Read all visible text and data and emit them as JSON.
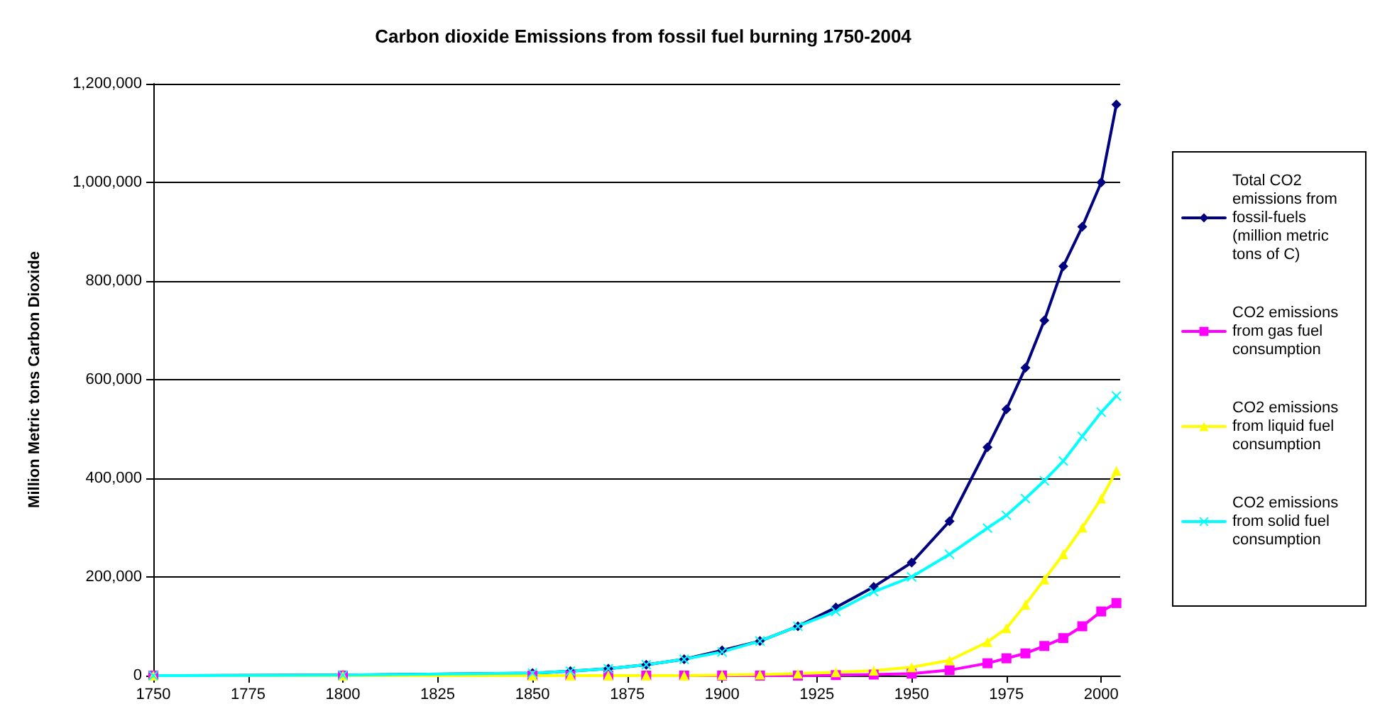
{
  "chart_data": {
    "type": "line",
    "title": "Carbon dioxide Emissions from fossil fuel burning 1750-2004",
    "ylabel": "Million Metric tons Carbon Dioxide",
    "x": [
      1750,
      1800,
      1850,
      1860,
      1870,
      1880,
      1890,
      1900,
      1910,
      1920,
      1930,
      1940,
      1950,
      1960,
      1970,
      1975,
      1980,
      1985,
      1990,
      1995,
      2000,
      2004
    ],
    "series": [
      {
        "name": "Total CO2 emissions from fossil-fuels (million metric tons of C)",
        "color": "#000080",
        "marker": "diamond",
        "values": [
          0,
          1000,
          5000,
          9000,
          14000,
          22000,
          33000,
          51000,
          70000,
          100000,
          138000,
          180000,
          229000,
          313000,
          463000,
          540000,
          624000,
          720000,
          830000,
          910000,
          1000000,
          1158000
        ]
      },
      {
        "name": "CO2 emissions from gas fuel consumption",
        "color": "#ff00ff",
        "marker": "square",
        "values": [
          0,
          0,
          0,
          0,
          0,
          0,
          0,
          0,
          0,
          0,
          1000,
          2000,
          4000,
          11000,
          25000,
          35000,
          45000,
          60000,
          76000,
          100000,
          130000,
          147000
        ]
      },
      {
        "name": "CO2 emissions from liquid fuel consumption",
        "color": "#ffff00",
        "marker": "triangle",
        "values": [
          0,
          0,
          0,
          0,
          0,
          0,
          0,
          1000,
          2000,
          4000,
          7000,
          10000,
          17000,
          31000,
          68000,
          96000,
          144000,
          195000,
          246000,
          300000,
          359000,
          415000
        ]
      },
      {
        "name": "CO2 emissions from solid fuel consumption",
        "color": "#00ffff",
        "marker": "cross",
        "values": [
          0,
          1000,
          5000,
          9000,
          14000,
          22000,
          33000,
          48000,
          70000,
          100000,
          130000,
          170000,
          200000,
          246000,
          299000,
          325000,
          359000,
          395000,
          435000,
          485000,
          534000,
          567000
        ]
      }
    ],
    "xlim": [
      1750,
      2005
    ],
    "xticks": [
      1750,
      1775,
      1800,
      1825,
      1850,
      1875,
      1900,
      1925,
      1950,
      1975,
      2000
    ],
    "ylim": [
      0,
      1200000
    ],
    "yticks": [
      0,
      {
        "value": 200000,
        "label": "200,000"
      },
      {
        "value": 400000,
        "label": "400,000"
      },
      {
        "value": 600000,
        "label": "600,000"
      },
      {
        "value": 800000,
        "label": "800,000"
      },
      {
        "value": 1000000,
        "label": "1,000,000"
      },
      {
        "value": 1200000,
        "label": "1,200,000"
      }
    ],
    "grid": "y",
    "legend": "right",
    "line_style": "solid"
  }
}
